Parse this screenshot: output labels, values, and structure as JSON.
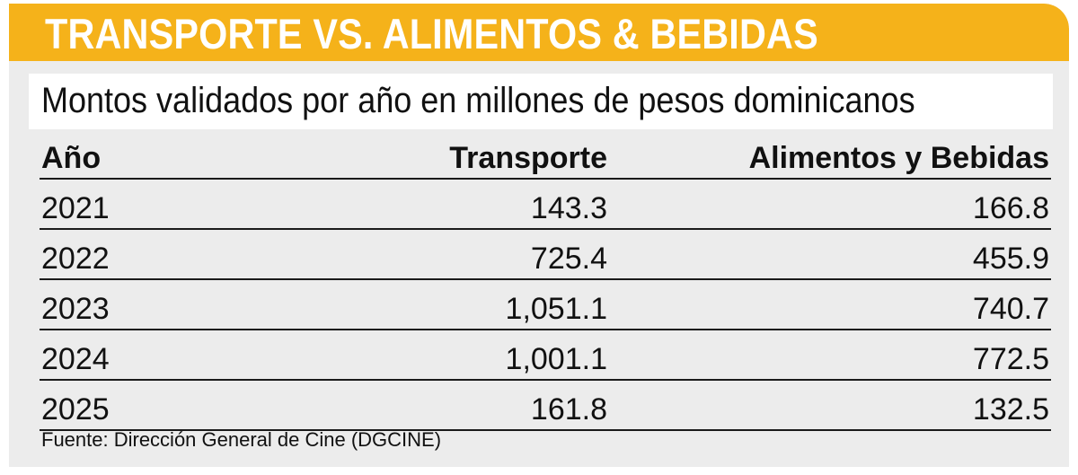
{
  "chart_data": {
    "type": "table",
    "title": "TRANSPORTE VS. ALIMENTOS & BEBIDAS",
    "subtitle": "Montos validados por año en millones de pesos dominicanos",
    "columns": [
      "Año",
      "Transporte",
      "Alimentos y Bebidas"
    ],
    "rows": [
      [
        "2021",
        "143.3",
        "166.8"
      ],
      [
        "2022",
        "725.4",
        "455.9"
      ],
      [
        "2023",
        "1,051.1",
        "740.7"
      ],
      [
        "2024",
        "1,001.1",
        "772.5"
      ],
      [
        "2025",
        "161.8",
        "132.5"
      ]
    ],
    "source": "Fuente: Dirección General de Cine (DGCINE)"
  },
  "colors": {
    "banner": "#f5b21a",
    "panel": "#ececec",
    "title_text": "#ffffff",
    "body_text": "#111111"
  }
}
